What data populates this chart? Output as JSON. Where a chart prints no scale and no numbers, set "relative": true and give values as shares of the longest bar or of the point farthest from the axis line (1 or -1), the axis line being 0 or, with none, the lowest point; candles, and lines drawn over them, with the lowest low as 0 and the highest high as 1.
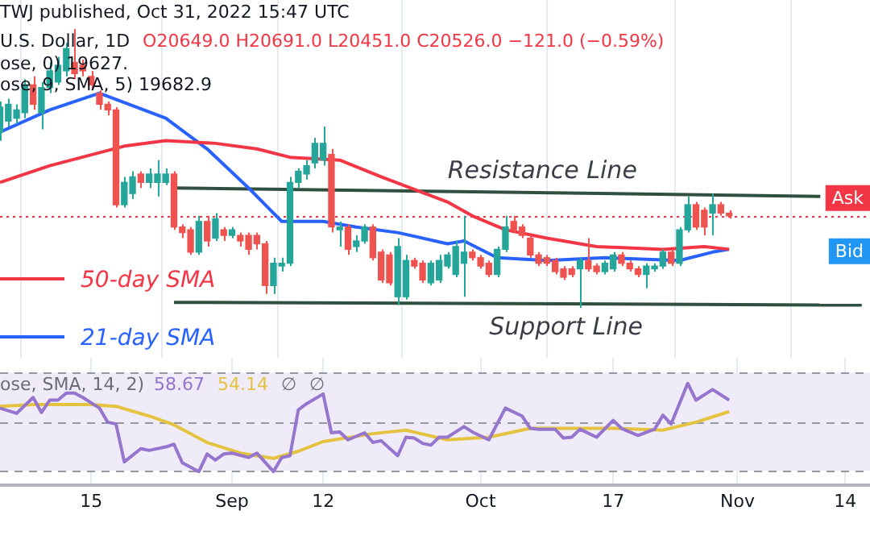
{
  "chart_data": [
    {
      "type": "candlestick",
      "relative": true,
      "title": "U.S. Dollar, 1D",
      "subtitle": "O20649.0 H20691.0 L20451.0 C20526.0 −121.0 (−0.59%)",
      "annotations": [
        "TWJ published, Oct 31, 2022 15:47 UTC",
        "ose, 0) 19627.",
        "ose, 9, SMA, 5) 19682.9",
        "Ask",
        "Bid"
      ],
      "x": [
        "2022-08-04",
        "2022-08-05",
        "2022-08-06",
        "2022-08-07",
        "2022-08-08",
        "2022-08-09",
        "2022-08-10",
        "2022-08-11",
        "2022-08-12",
        "2022-08-13",
        "2022-08-14",
        "2022-08-15",
        "2022-08-16",
        "2022-08-17",
        "2022-08-18",
        "2022-08-19",
        "2022-08-20",
        "2022-08-21",
        "2022-08-22",
        "2022-08-23",
        "2022-08-24",
        "2022-08-25",
        "2022-08-26",
        "2022-08-27",
        "2022-08-28",
        "2022-08-29",
        "2022-08-30",
        "2022-08-31",
        "2022-09-01",
        "2022-09-02",
        "2022-09-03",
        "2022-09-04",
        "2022-09-05",
        "2022-09-06",
        "2022-09-07",
        "2022-09-08",
        "2022-09-09",
        "2022-09-10",
        "2022-09-11",
        "2022-09-12",
        "2022-09-13",
        "2022-09-14",
        "2022-09-15",
        "2022-09-16",
        "2022-09-17",
        "2022-09-18",
        "2022-09-19",
        "2022-09-20",
        "2022-09-21",
        "2022-09-22",
        "2022-09-23",
        "2022-09-24",
        "2022-09-25",
        "2022-09-26",
        "2022-09-27",
        "2022-09-28",
        "2022-09-29",
        "2022-09-30",
        "2022-10-01",
        "2022-10-02",
        "2022-10-03",
        "2022-10-04",
        "2022-10-05",
        "2022-10-06",
        "2022-10-07",
        "2022-10-08",
        "2022-10-09",
        "2022-10-10",
        "2022-10-11",
        "2022-10-12",
        "2022-10-13",
        "2022-10-14",
        "2022-10-15",
        "2022-10-16",
        "2022-10-17",
        "2022-10-18",
        "2022-10-19",
        "2022-10-20",
        "2022-10-21",
        "2022-10-22",
        "2022-10-23",
        "2022-10-24",
        "2022-10-25",
        "2022-10-26",
        "2022-10-27",
        "2022-10-28",
        "2022-10-29",
        "2022-10-30",
        "2022-10-31"
      ],
      "ohlc": [
        [
          0.63,
          0.74,
          0.6,
          0.72
        ],
        [
          0.67,
          0.75,
          0.65,
          0.73
        ],
        [
          0.68,
          0.73,
          0.66,
          0.71
        ],
        [
          0.7,
          0.82,
          0.68,
          0.8
        ],
        [
          0.8,
          0.83,
          0.71,
          0.73
        ],
        [
          0.7,
          0.81,
          0.64,
          0.79
        ],
        [
          0.79,
          0.88,
          0.77,
          0.85
        ],
        [
          0.81,
          0.9,
          0.8,
          0.87
        ],
        [
          0.85,
          0.95,
          0.83,
          0.93
        ],
        [
          0.88,
          1,
          0.82,
          0.84
        ],
        [
          0.87,
          0.89,
          0.83,
          0.85
        ],
        [
          0.83,
          0.85,
          0.78,
          0.8
        ],
        [
          0.77,
          0.78,
          0.71,
          0.73
        ],
        [
          0.73,
          0.74,
          0.69,
          0.71
        ],
        [
          0.71,
          0.72,
          0.36,
          0.37
        ],
        [
          0.37,
          0.47,
          0.36,
          0.45
        ],
        [
          0.41,
          0.49,
          0.39,
          0.47
        ],
        [
          0.48,
          0.49,
          0.43,
          0.45
        ],
        [
          0.45,
          0.5,
          0.43,
          0.48
        ],
        [
          0.45,
          0.53,
          0.4,
          0.48
        ],
        [
          0.45,
          0.5,
          0.44,
          0.48
        ],
        [
          0.48,
          0.49,
          0.28,
          0.29
        ],
        [
          0.29,
          0.3,
          0.25,
          0.27
        ],
        [
          0.28,
          0.29,
          0.19,
          0.2
        ],
        [
          0.2,
          0.33,
          0.19,
          0.31
        ],
        [
          0.31,
          0.33,
          0.22,
          0.24
        ],
        [
          0.25,
          0.34,
          0.24,
          0.32
        ],
        [
          0.28,
          0.29,
          0.24,
          0.26
        ],
        [
          0.26,
          0.29,
          0.25,
          0.28
        ],
        [
          0.26,
          0.27,
          0.22,
          0.24
        ],
        [
          0.26,
          0.27,
          0.19,
          0.21
        ],
        [
          0.26,
          0.27,
          0.21,
          0.23
        ],
        [
          0.23,
          0.24,
          0.05,
          0.08
        ],
        [
          0.08,
          0.18,
          0.05,
          0.16
        ],
        [
          0.15,
          0.18,
          0.13,
          0.16
        ],
        [
          0.16,
          0.47,
          0.15,
          0.45
        ],
        [
          0.45,
          0.5,
          0.43,
          0.49
        ],
        [
          0.48,
          0.53,
          0.46,
          0.51
        ],
        [
          0.52,
          0.61,
          0.5,
          0.59
        ],
        [
          0.53,
          0.65,
          0.51,
          0.59
        ],
        [
          0.55,
          0.57,
          0.27,
          0.29
        ],
        [
          0.28,
          0.31,
          0.22,
          0.29
        ],
        [
          0.29,
          0.3,
          0.19,
          0.21
        ],
        [
          0.22,
          0.26,
          0.2,
          0.24
        ],
        [
          0.24,
          0.3,
          0.23,
          0.29
        ],
        [
          0.29,
          0.3,
          0.17,
          0.18
        ],
        [
          0.2,
          0.21,
          0.09,
          0.1
        ],
        [
          0.19,
          0.2,
          0.08,
          0.09
        ],
        [
          0.04,
          0.25,
          0.01,
          0.22
        ],
        [
          0.04,
          0.19,
          0.03,
          0.17
        ],
        [
          0.17,
          0.18,
          0.14,
          0.15
        ],
        [
          0.16,
          0.17,
          0.09,
          0.1
        ],
        [
          0.09,
          0.17,
          0.08,
          0.16
        ],
        [
          0.1,
          0.19,
          0.09,
          0.17
        ],
        [
          0.15,
          0.2,
          0.14,
          0.19
        ],
        [
          0.12,
          0.24,
          0.11,
          0.22
        ],
        [
          0.16,
          0.33,
          0.04,
          0.2
        ],
        [
          0.2,
          0.21,
          0.17,
          0.18
        ],
        [
          0.18,
          0.19,
          0.14,
          0.15
        ],
        [
          0.16,
          0.17,
          0.11,
          0.12
        ],
        [
          0.12,
          0.22,
          0.11,
          0.21
        ],
        [
          0.21,
          0.33,
          0.2,
          0.29
        ],
        [
          0.31,
          0.33,
          0.27,
          0.28
        ],
        [
          0.29,
          0.3,
          0.25,
          0.26
        ],
        [
          0.25,
          0.26,
          0.18,
          0.19
        ],
        [
          0.19,
          0.2,
          0.15,
          0.16
        ],
        [
          0.18,
          0.19,
          0.15,
          0.16
        ],
        [
          0.17,
          0.18,
          0.12,
          0.13
        ],
        [
          0.14,
          0.15,
          0.1,
          0.11
        ],
        [
          0.14,
          0.15,
          0.11,
          0.12
        ],
        [
          0.14,
          0.18,
          0,
          0.17
        ],
        [
          0.17,
          0.25,
          0.13,
          0.14
        ],
        [
          0.15,
          0.16,
          0.12,
          0.13
        ],
        [
          0.13,
          0.17,
          0.12,
          0.16
        ],
        [
          0.14,
          0.2,
          0.13,
          0.19
        ],
        [
          0.19,
          0.2,
          0.15,
          0.16
        ],
        [
          0.16,
          0.17,
          0.13,
          0.14
        ],
        [
          0.14,
          0.15,
          0.11,
          0.12
        ],
        [
          0.12,
          0.16,
          0.07,
          0.15
        ],
        [
          0.14,
          0.16,
          0.13,
          0.15
        ],
        [
          0.15,
          0.21,
          0.14,
          0.2
        ],
        [
          0.2,
          0.21,
          0.15,
          0.16
        ],
        [
          0.16,
          0.29,
          0.15,
          0.28
        ],
        [
          0.28,
          0.4,
          0.27,
          0.37
        ],
        [
          0.37,
          0.38,
          0.28,
          0.29
        ],
        [
          0.35,
          0.36,
          0.26,
          0.29
        ],
        [
          0.34,
          0.41,
          0.26,
          0.37
        ],
        [
          0.37,
          0.38,
          0.33,
          0.34
        ],
        [
          0.34,
          0.35,
          0.32,
          0.33
        ]
      ],
      "colors": [
        "#26a69a",
        "#26a69a",
        "#26a69a",
        "#26a69a",
        "#ef5350",
        "#26a69a",
        "#26a69a",
        "#26a69a",
        "#26a69a",
        "#ef5350",
        "#ef5350",
        "#ef5350",
        "#ef5350",
        "#ef5350",
        "#ef5350",
        "#26a69a",
        "#26a69a",
        "#ef5350",
        "#26a69a",
        "#26a69a",
        "#26a69a",
        "#ef5350",
        "#ef5350",
        "#ef5350",
        "#26a69a",
        "#ef5350",
        "#26a69a",
        "#ef5350",
        "#26a69a",
        "#ef5350",
        "#ef5350",
        "#ef5350",
        "#ef5350",
        "#26a69a",
        "#26a69a",
        "#26a69a",
        "#26a69a",
        "#26a69a",
        "#26a69a",
        "#26a69a",
        "#ef5350",
        "#26a69a",
        "#ef5350",
        "#26a69a",
        "#26a69a",
        "#ef5350",
        "#ef5350",
        "#ef5350",
        "#26a69a",
        "#26a69a",
        "#ef5350",
        "#ef5350",
        "#26a69a",
        "#26a69a",
        "#26a69a",
        "#26a69a",
        "#26a69a",
        "#ef5350",
        "#ef5350",
        "#ef5350",
        "#26a69a",
        "#26a69a",
        "#ef5350",
        "#ef5350",
        "#ef5350",
        "#ef5350",
        "#ef5350",
        "#ef5350",
        "#ef5350",
        "#ef5350",
        "#26a69a",
        "#ef5350",
        "#ef5350",
        "#26a69a",
        "#26a69a",
        "#ef5350",
        "#ef5350",
        "#ef5350",
        "#26a69a",
        "#26a69a",
        "#26a69a",
        "#ef5350",
        "#26a69a",
        "#26a69a",
        "#ef5350",
        "#ef5350",
        "#26a69a",
        "#ef5350",
        "#ef5350"
      ],
      "series": [
        {
          "name": "50-day SMA",
          "type": "line",
          "color": "#f23645",
          "x": [
            "2022-08-04",
            "2022-08-10",
            "2022-08-19",
            "2022-08-24",
            "2022-08-30",
            "2022-09-04",
            "2022-09-08",
            "2022-09-14",
            "2022-09-19",
            "2022-09-27",
            "2022-09-30",
            "2022-10-04",
            "2022-10-09",
            "2022-10-15",
            "2022-10-23",
            "2022-10-28",
            "2022-10-31"
          ],
          "values": [
            0.45,
            0.51,
            0.58,
            0.6,
            0.59,
            0.57,
            0.54,
            0.53,
            0.47,
            0.38,
            0.33,
            0.28,
            0.25,
            0.22,
            0.21,
            0.22,
            0.21
          ]
        },
        {
          "name": "21-day SMA",
          "type": "line",
          "color": "#2962ff",
          "x": [
            "2022-08-04",
            "2022-08-10",
            "2022-08-16",
            "2022-08-24",
            "2022-08-29",
            "2022-09-03",
            "2022-09-07",
            "2022-09-12",
            "2022-09-16",
            "2022-09-21",
            "2022-09-27",
            "2022-09-29",
            "2022-10-03",
            "2022-10-09",
            "2022-10-16",
            "2022-10-25",
            "2022-10-29",
            "2022-10-31"
          ],
          "values": [
            0.63,
            0.71,
            0.77,
            0.68,
            0.57,
            0.43,
            0.31,
            0.31,
            0.29,
            0.27,
            0.23,
            0.24,
            0.18,
            0.17,
            0.18,
            0.17,
            0.2,
            0.21
          ]
        },
        {
          "name": "Resistance Line",
          "type": "line",
          "color": "#2f4f3f",
          "x": [
            "2022-08-25",
            "2022-11-11"
          ],
          "values": [
            0.43,
            0.4
          ]
        },
        {
          "name": "Support Line",
          "type": "line",
          "color": "#2f4f3f",
          "x": [
            "2022-08-25",
            "2022-11-16"
          ],
          "values": [
            0.02,
            0.01
          ]
        }
      ],
      "ref_lines": [
        {
          "axis": "y",
          "value": 0.33,
          "color": "#f23645",
          "line_style": "dotted"
        }
      ],
      "marker": "none",
      "grid": "x",
      "legend": "bottom left",
      "tick_labels": false,
      "xlim": [
        "2022-08-04",
        "2022-11-17"
      ],
      "xticks": [
        {
          "value": "2022-08-15",
          "label": null
        },
        {
          "value": "2022-09-01",
          "label": null
        },
        {
          "value": "2022-09-12",
          "label": null
        },
        {
          "value": "2022-10-01",
          "label": null
        },
        {
          "value": "2022-10-17",
          "label": null
        },
        {
          "value": "2022-11-01",
          "label": null
        },
        {
          "value": "2022-11-14",
          "label": null
        }
      ]
    },
    {
      "type": "line",
      "relative": true,
      "title": "ose, SMA, 14, 2)",
      "annotations": [
        "58.67",
        "54.14",
        "∅",
        "∅"
      ],
      "series": [
        {
          "color": "#9575cd",
          "x": [
            "2022-08-04",
            "2022-08-06",
            "2022-08-08",
            "2022-08-09",
            "2022-08-10",
            "2022-08-11",
            "2022-08-12",
            "2022-08-13",
            "2022-08-14",
            "2022-08-16",
            "2022-08-17",
            "2022-08-18",
            "2022-08-19",
            "2022-08-21",
            "2022-08-22",
            "2022-08-24",
            "2022-08-25",
            "2022-08-26",
            "2022-08-28",
            "2022-08-29",
            "2022-08-30",
            "2022-08-31",
            "2022-09-01",
            "2022-09-03",
            "2022-09-04",
            "2022-09-06",
            "2022-09-07",
            "2022-09-08",
            "2022-09-09",
            "2022-09-10",
            "2022-09-12",
            "2022-09-13",
            "2022-09-14",
            "2022-09-15",
            "2022-09-17",
            "2022-09-18",
            "2022-09-19",
            "2022-09-21",
            "2022-09-22",
            "2022-09-23",
            "2022-09-24",
            "2022-09-25",
            "2022-09-26",
            "2022-09-27",
            "2022-09-29",
            "2022-09-30",
            "2022-10-02",
            "2022-10-04",
            "2022-10-06",
            "2022-10-07",
            "2022-10-08",
            "2022-10-10",
            "2022-10-11",
            "2022-10-12",
            "2022-10-13",
            "2022-10-15",
            "2022-10-17",
            "2022-10-18",
            "2022-10-20",
            "2022-10-22",
            "2022-10-23",
            "2022-10-24",
            "2022-10-26",
            "2022-10-27",
            "2022-10-29",
            "2022-10-31"
          ],
          "values": [
            0.72,
            0.66,
            0.84,
            0.67,
            0.81,
            0.81,
            0.89,
            0.89,
            0.84,
            0.72,
            0.56,
            0.54,
            0.11,
            0.26,
            0.24,
            0.28,
            0.31,
            0.1,
            0,
            0.2,
            0.13,
            0.2,
            0.21,
            0.16,
            0.21,
            0,
            0.16,
            0.18,
            0.7,
            0.77,
            0.88,
            0.44,
            0.45,
            0.36,
            0.44,
            0.33,
            0.35,
            0.18,
            0.39,
            0.38,
            0.32,
            0.3,
            0.39,
            0.39,
            0.51,
            0.45,
            0.36,
            0.72,
            0.63,
            0.49,
            0.48,
            0.48,
            0.38,
            0.39,
            0.48,
            0.39,
            0.58,
            0.49,
            0.41,
            0.48,
            0.64,
            0.54,
            1,
            0.81,
            0.93,
            0.81
          ]
        },
        {
          "color": "#e3c33f",
          "x": [
            "2022-08-04",
            "2022-08-08",
            "2022-08-15",
            "2022-08-18",
            "2022-08-22",
            "2022-08-25",
            "2022-08-29",
            "2022-09-02",
            "2022-09-06",
            "2022-09-09",
            "2022-09-12",
            "2022-09-18",
            "2022-09-22",
            "2022-09-27",
            "2022-10-02",
            "2022-10-07",
            "2022-10-17",
            "2022-10-23",
            "2022-10-27",
            "2022-10-31"
          ],
          "values": [
            0.74,
            0.76,
            0.76,
            0.74,
            0.63,
            0.53,
            0.33,
            0.21,
            0.15,
            0.23,
            0.34,
            0.43,
            0.47,
            0.36,
            0.39,
            0.49,
            0.49,
            0.47,
            0.56,
            0.68
          ]
        }
      ],
      "bands": [
        {
          "axis": "y",
          "from": 0.01,
          "to": 1.12,
          "color": "#f0ebf8"
        }
      ],
      "ref_lines": [
        {
          "axis": "y",
          "value": 1.12,
          "color": "#9598a1",
          "line_style": "dashed"
        },
        {
          "axis": "y",
          "value": 0.56,
          "color": "#9598a1",
          "line_style": "dashed"
        },
        {
          "axis": "y",
          "value": 0.01,
          "color": "#9598a1",
          "line_style": "dashed"
        }
      ],
      "marker": "none",
      "grid": "x",
      "legend": false,
      "tick_labels": "x",
      "xlim": [
        "2022-08-04",
        "2022-11-17"
      ],
      "xticks": [
        {
          "value": "2022-08-15",
          "label": "15"
        },
        {
          "value": "2022-09-01",
          "label": "Sep"
        },
        {
          "value": "2022-09-12",
          "label": "12"
        },
        {
          "value": "2022-10-01",
          "label": "Oct"
        },
        {
          "value": "2022-10-17",
          "label": "17"
        },
        {
          "value": "2022-11-01",
          "label": "Nov"
        },
        {
          "value": "2022-11-14",
          "label": "14"
        }
      ]
    }
  ]
}
